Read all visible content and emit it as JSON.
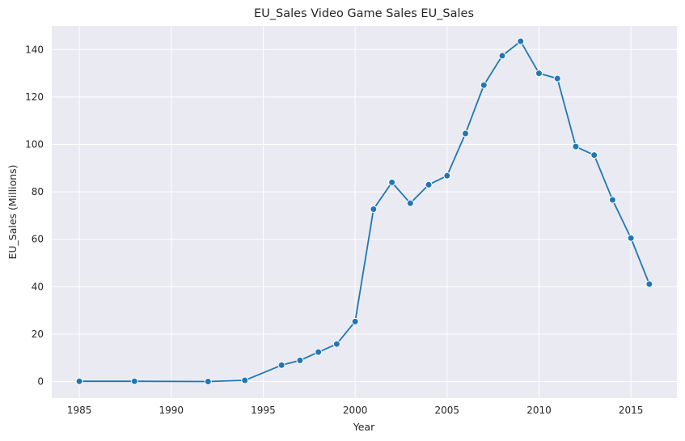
{
  "chart_data": {
    "type": "line",
    "title": "EU_Sales Video Game Sales EU_Sales",
    "xlabel": "Year",
    "ylabel": "EU_Sales (Millions)",
    "xlim": [
      1983.5,
      2017.5
    ],
    "ylim": [
      -7,
      150
    ],
    "xticks": [
      1985,
      1990,
      1995,
      2000,
      2005,
      2010,
      2015
    ],
    "yticks": [
      0,
      20,
      40,
      60,
      80,
      100,
      120,
      140
    ],
    "grid": true,
    "background": "#eaeaf2",
    "line_color": "#1f77b4",
    "series": [
      {
        "x": [
          1985,
          1988,
          1992,
          1994,
          1996,
          1997,
          1998,
          1999,
          2000,
          2001,
          2002,
          2003,
          2004,
          2005,
          2006,
          2007,
          2008,
          2009,
          2010,
          2011,
          2012,
          2013,
          2014,
          2015,
          2016
        ],
        "y": [
          0.1,
          0.1,
          0.0,
          0.5,
          6.9,
          8.9,
          12.4,
          15.8,
          25.3,
          72.7,
          84.0,
          75.2,
          83.0,
          86.8,
          104.6,
          125.0,
          137.4,
          143.5,
          130.0,
          127.8,
          99.1,
          95.5,
          76.6,
          60.5,
          41.1
        ]
      }
    ]
  }
}
